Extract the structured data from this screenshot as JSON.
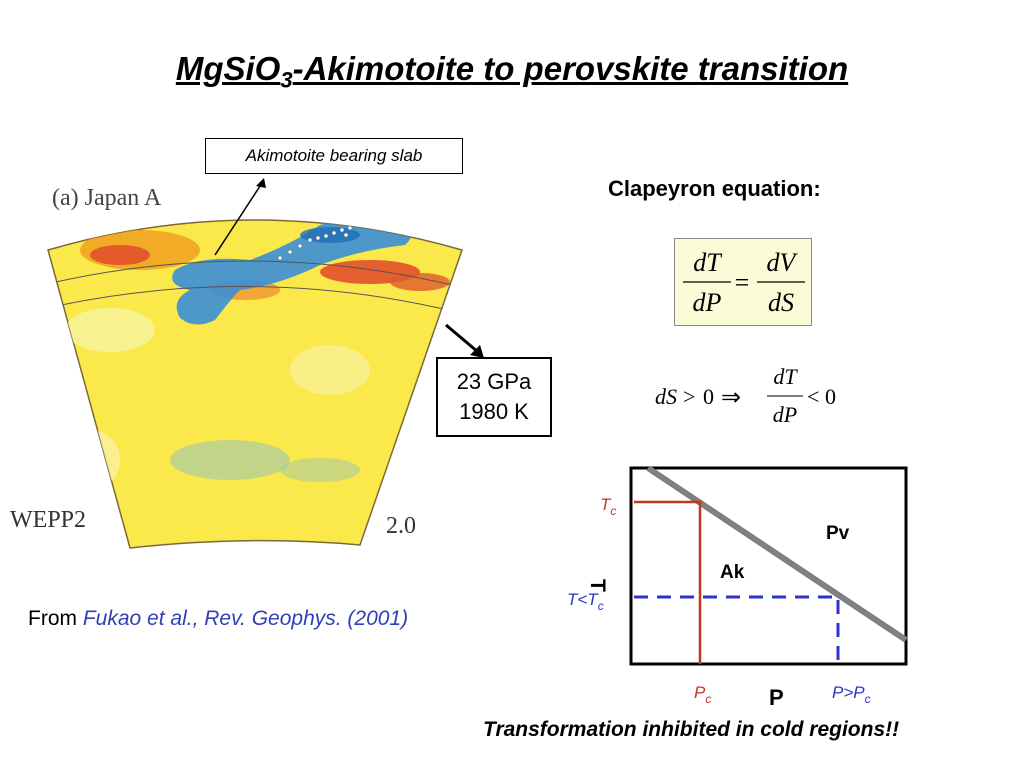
{
  "title": {
    "main": "MgSiO",
    "sub": "3",
    "rest": "-Akimotoite to perovskite transition"
  },
  "map": {
    "label": "(a) Japan A",
    "model": "WEPP2",
    "scale": "2.0",
    "colors": {
      "background": "#fbe84a",
      "fast": "#3a8fd6",
      "slow": "#e0462a"
    }
  },
  "callouts": {
    "slab": "Akimotoite bearing slab",
    "pressure": "23 GPa",
    "temperature": "1980 K"
  },
  "source": {
    "prefix": "From",
    "ref": "Fukao et al., Rev. Geophys. (2001)"
  },
  "clapeyron": {
    "title": "Clapeyron equation:",
    "eq1": {
      "num_l": "dT",
      "den_l": "dP",
      "eq": "=",
      "num_r": "dV",
      "den_r": "dS"
    },
    "eq2": {
      "lhs": "dS",
      "gt": ">",
      "zero": "0",
      "implies": "⇒",
      "num": "dT",
      "den": "dP",
      "lt": "<",
      "zero2": "0"
    }
  },
  "phase_diagram": {
    "y_axis": "T",
    "x_axis": "P",
    "tc": {
      "main": "T",
      "sub": "c"
    },
    "t_lt_tc": {
      "main": "T<T",
      "sub": "c"
    },
    "pc": {
      "main": "P",
      "sub": "c"
    },
    "p_gt_pc": {
      "main": "P>P",
      "sub": "c"
    },
    "region_low": "Ak",
    "region_high": "Pv",
    "colors": {
      "boundary": "#808080",
      "critical": "#c0391b",
      "cold": "#2b35c8"
    }
  },
  "conclusion": "Transformation inhibited in cold regions!!"
}
